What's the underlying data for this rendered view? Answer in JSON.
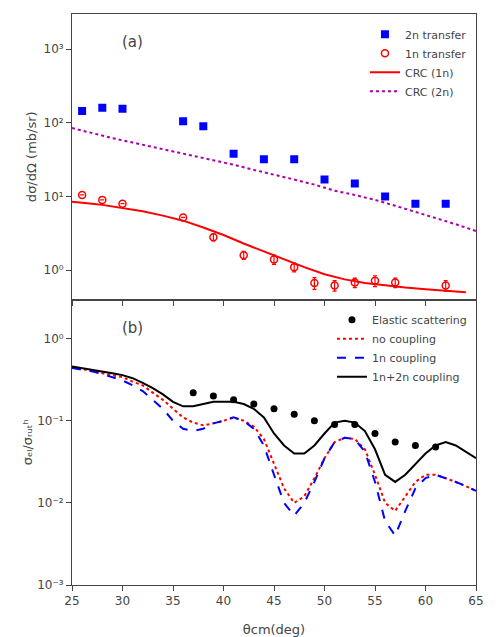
{
  "chart_data": [
    {
      "type": "scatter",
      "title": "(a)",
      "ylabel": "dσ/dΩ (mb/sr)",
      "log": "y",
      "grid": false,
      "legend": "upper right",
      "tick_labels": "y",
      "xlim": [
        25,
        65
      ],
      "xticks": [
        25,
        30,
        35,
        40,
        45,
        50,
        55,
        60,
        65
      ],
      "ylim": [
        0.4,
        3000
      ],
      "yticks": [
        {
          "value": 1,
          "label": "10⁰"
        },
        {
          "value": 10,
          "label": "10¹"
        },
        {
          "value": 100,
          "label": "10²"
        },
        {
          "value": 1000,
          "label": "10³"
        }
      ],
      "series": [
        {
          "name": "2n transfer",
          "type": "scatter",
          "marker": "square",
          "color": "#0000FF",
          "x": [
            26,
            28,
            30,
            36,
            38,
            41,
            44,
            47,
            50,
            53,
            56,
            59,
            62
          ],
          "values": [
            145,
            160,
            155,
            105,
            90,
            38,
            32,
            32,
            17,
            15,
            10,
            8,
            8
          ]
        },
        {
          "name": "1n transfer",
          "type": "scatter",
          "marker": "circle-open",
          "color": "#FF0000",
          "x": [
            26,
            28,
            30,
            36,
            39,
            42,
            45,
            47,
            49,
            51,
            53,
            55,
            57,
            62
          ],
          "values": [
            10.5,
            9.0,
            8.0,
            5.2,
            2.8,
            1.6,
            1.4,
            1.1,
            0.67,
            0.62,
            0.68,
            0.72,
            0.68,
            0.62
          ],
          "yerr": [
            0.0,
            0.0,
            0.0,
            0.0,
            0.3,
            0.2,
            0.2,
            0.15,
            0.12,
            0.1,
            0.1,
            0.12,
            0.1,
            0.1
          ]
        },
        {
          "name": "CRC (1n)",
          "type": "line",
          "line_style": "solid",
          "color": "#FF0000",
          "x": [
            25,
            26,
            27,
            28,
            30,
            32,
            34,
            36,
            38,
            40,
            42,
            44,
            46,
            48,
            50,
            52,
            54,
            56,
            58,
            60,
            62,
            64
          ],
          "values": [
            8.5,
            8.3,
            8.0,
            7.7,
            7.0,
            6.3,
            5.5,
            4.7,
            3.8,
            3.0,
            2.3,
            1.8,
            1.4,
            1.1,
            0.88,
            0.75,
            0.67,
            0.62,
            0.58,
            0.55,
            0.52,
            0.5
          ]
        },
        {
          "name": "CRC (2n)",
          "type": "line",
          "line_style": "dotted",
          "color": "#AA00AA",
          "x": [
            25,
            27,
            29,
            31,
            33,
            35,
            37,
            39,
            41,
            43,
            45,
            47,
            49,
            51,
            53,
            55,
            57,
            59,
            61,
            63,
            65
          ],
          "values": [
            85,
            72,
            62,
            54,
            47,
            41,
            36,
            31,
            27,
            23,
            20,
            17,
            14.5,
            12,
            10.5,
            9.0,
            7.5,
            6.2,
            5.2,
            4.2,
            3.4
          ]
        }
      ]
    },
    {
      "type": "scatter",
      "title": "(b)",
      "ylabel": "σₑₗ/σᵣᵤₜʰ",
      "xlabel": "θcm(deg)",
      "log": "y",
      "grid": false,
      "legend": "upper right",
      "xlim": [
        25,
        65
      ],
      "xticks": [
        25,
        30,
        35,
        40,
        45,
        50,
        55,
        60,
        65
      ],
      "ylim": [
        0.001,
        3
      ],
      "yticks": [
        {
          "value": 0.001,
          "label": "10⁻³"
        },
        {
          "value": 0.01,
          "label": "10⁻²"
        },
        {
          "value": 0.1,
          "label": "10⁻¹"
        },
        {
          "value": 1,
          "label": "10⁰"
        }
      ],
      "series": [
        {
          "name": "Elastic scattering",
          "type": "scatter",
          "marker": "circle",
          "color": "#000000",
          "x": [
            37,
            39,
            41,
            43,
            45,
            47,
            49,
            51,
            53,
            55,
            57,
            59,
            61
          ],
          "values": [
            0.22,
            0.2,
            0.18,
            0.16,
            0.14,
            0.12,
            0.1,
            0.09,
            0.09,
            0.07,
            0.055,
            0.05,
            0.048
          ]
        },
        {
          "name": "no coupling",
          "type": "line",
          "line_style": "dotted",
          "color": "#FF0000",
          "x": [
            25,
            26,
            27,
            28,
            29,
            30,
            31,
            32,
            33,
            34,
            35,
            36,
            37,
            38,
            39,
            40,
            41,
            42,
            43,
            44,
            45,
            46,
            47,
            48,
            49,
            50,
            51,
            52,
            53,
            54,
            55,
            56,
            57,
            58,
            59,
            60,
            61,
            62,
            63,
            64,
            65
          ],
          "values": [
            0.45,
            0.43,
            0.4,
            0.38,
            0.36,
            0.34,
            0.3,
            0.27,
            0.22,
            0.18,
            0.14,
            0.11,
            0.095,
            0.088,
            0.093,
            0.1,
            0.11,
            0.1,
            0.085,
            0.06,
            0.03,
            0.015,
            0.01,
            0.012,
            0.02,
            0.035,
            0.055,
            0.062,
            0.06,
            0.045,
            0.022,
            0.01,
            0.008,
            0.012,
            0.018,
            0.022,
            0.022,
            0.02,
            0.018,
            0.016,
            0.014
          ]
        },
        {
          "name": "1n coupling",
          "type": "line",
          "line_style": "dashed",
          "color": "#0000FF",
          "x": [
            25,
            26,
            27,
            28,
            29,
            30,
            31,
            32,
            33,
            34,
            35,
            36,
            37,
            38,
            39,
            40,
            41,
            42,
            43,
            44,
            45,
            46,
            47,
            48,
            49,
            50,
            51,
            52,
            53,
            54,
            55,
            56,
            57,
            58,
            59,
            60,
            61,
            62,
            63,
            64,
            65
          ],
          "values": [
            0.44,
            0.42,
            0.4,
            0.37,
            0.34,
            0.31,
            0.27,
            0.23,
            0.18,
            0.14,
            0.1,
            0.08,
            0.075,
            0.08,
            0.093,
            0.1,
            0.11,
            0.1,
            0.08,
            0.05,
            0.022,
            0.01,
            0.007,
            0.01,
            0.018,
            0.035,
            0.055,
            0.062,
            0.06,
            0.042,
            0.018,
            0.006,
            0.004,
            0.008,
            0.015,
            0.02,
            0.022,
            0.02,
            0.018,
            0.016,
            0.014
          ]
        },
        {
          "name": "1n+2n coupling",
          "type": "line",
          "line_style": "solid",
          "color": "#000000",
          "x": [
            25,
            26,
            27,
            28,
            29,
            30,
            31,
            32,
            33,
            34,
            35,
            36,
            37,
            38,
            39,
            40,
            41,
            42,
            43,
            44,
            45,
            46,
            47,
            48,
            49,
            50,
            51,
            52,
            53,
            54,
            55,
            56,
            57,
            58,
            59,
            60,
            61,
            62,
            63,
            64,
            65
          ],
          "values": [
            0.46,
            0.44,
            0.42,
            0.4,
            0.38,
            0.36,
            0.33,
            0.29,
            0.25,
            0.21,
            0.17,
            0.15,
            0.15,
            0.16,
            0.17,
            0.17,
            0.17,
            0.16,
            0.14,
            0.11,
            0.07,
            0.05,
            0.04,
            0.04,
            0.05,
            0.07,
            0.095,
            0.1,
            0.095,
            0.075,
            0.045,
            0.022,
            0.018,
            0.022,
            0.03,
            0.04,
            0.05,
            0.055,
            0.05,
            0.042,
            0.035
          ]
        }
      ]
    }
  ]
}
